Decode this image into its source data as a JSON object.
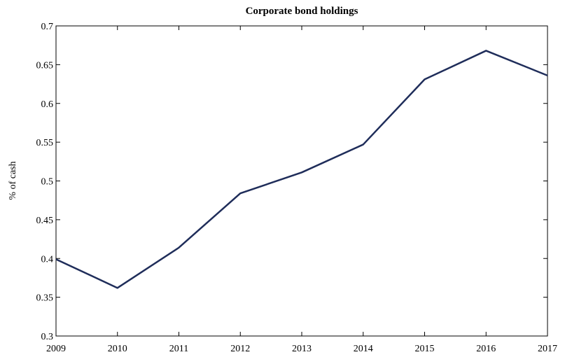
{
  "chart_data": {
    "type": "line",
    "title": "Corporate bond holdings",
    "y_label": "% of cash",
    "x": [
      2009,
      2010,
      2011,
      2012,
      2013,
      2014,
      2015,
      2016,
      2017
    ],
    "series": [
      {
        "color": "#1f2d5a",
        "values": [
          0.399,
          0.362,
          0.414,
          0.484,
          0.511,
          0.547,
          0.631,
          0.668,
          0.636
        ]
      }
    ],
    "xlim": [
      2009,
      2017
    ],
    "xticks": [
      2009,
      2010,
      2011,
      2012,
      2013,
      2014,
      2015,
      2016,
      2017
    ],
    "ylim": [
      0.3,
      0.7
    ],
    "yticks": [
      0.3,
      0.35,
      0.4,
      0.45,
      0.5,
      0.55,
      0.6,
      0.65,
      0.7
    ],
    "grid": false
  }
}
